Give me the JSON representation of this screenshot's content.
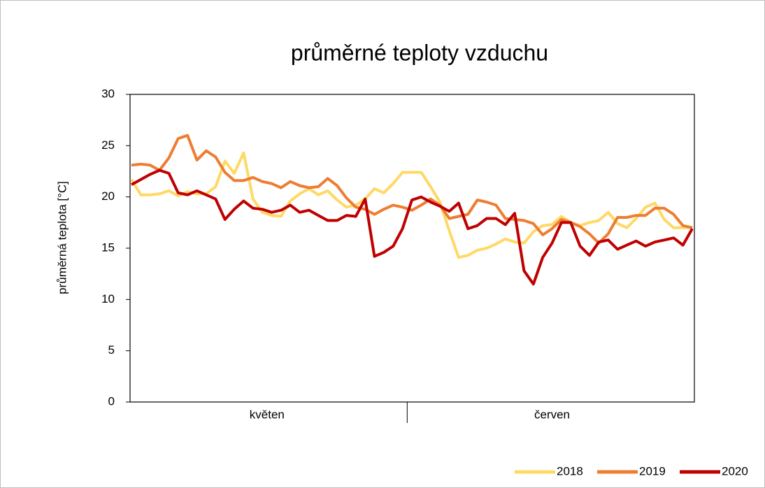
{
  "chart_data": {
    "type": "line",
    "title": "průměrné teploty vzduchu",
    "y_label": "průměrná teplota [°C]",
    "categories": [
      "květen",
      "květen",
      "květen",
      "květen",
      "květen",
      "květen",
      "květen",
      "květen",
      "květen",
      "květen",
      "květen",
      "květen",
      "květen",
      "květen",
      "květen",
      "květen",
      "květen",
      "květen",
      "květen",
      "květen",
      "květen",
      "květen",
      "květen",
      "květen",
      "květen",
      "květen",
      "květen",
      "květen",
      "květen",
      "květen",
      "červen",
      "červen",
      "červen",
      "červen",
      "červen",
      "červen",
      "červen",
      "červen",
      "červen",
      "červen",
      "červen",
      "červen",
      "červen",
      "červen",
      "červen",
      "červen",
      "červen",
      "červen",
      "červen",
      "červen",
      "červen",
      "červen",
      "červen",
      "červen",
      "červen",
      "červen",
      "červen",
      "červen",
      "červen",
      "červen",
      "červen"
    ],
    "series": [
      {
        "name": "2018",
        "color": "#FFD966",
        "values": [
          21.7,
          20.2,
          20.2,
          20.3,
          20.6,
          20.1,
          20.5,
          20.3,
          20.3,
          21.0,
          23.5,
          22.3,
          24.3,
          19.8,
          18.5,
          18.2,
          18.1,
          19.6,
          20.3,
          20.8,
          20.2,
          20.6,
          19.7,
          19.0,
          19.2,
          19.8,
          20.8,
          20.4,
          21.3,
          22.4,
          22.4,
          22.4,
          21.0,
          19.5,
          16.7,
          14.1,
          14.3,
          14.8,
          15.0,
          15.4,
          15.9,
          15.6,
          15.5,
          16.6,
          17.2,
          17.3,
          18.1,
          17.5,
          17.2,
          17.5,
          17.7,
          18.5,
          17.4,
          17.0,
          17.9,
          19.0,
          19.4,
          17.8,
          17.0,
          17.0,
          17.0
        ]
      },
      {
        "name": "2019",
        "color": "#ED7D31",
        "values": [
          23.1,
          23.2,
          23.1,
          22.6,
          23.8,
          25.7,
          26.0,
          23.6,
          24.5,
          23.9,
          22.4,
          21.6,
          21.6,
          21.9,
          21.5,
          21.3,
          20.9,
          21.5,
          21.1,
          20.9,
          21.0,
          21.8,
          21.1,
          19.9,
          19.0,
          18.8,
          18.3,
          18.8,
          19.2,
          19.0,
          18.7,
          19.2,
          19.8,
          19.2,
          17.9,
          18.1,
          18.3,
          19.7,
          19.5,
          19.2,
          17.9,
          17.8,
          17.7,
          17.4,
          16.3,
          16.9,
          17.8,
          17.5,
          17.1,
          16.4,
          15.5,
          16.4,
          18.0,
          18.0,
          18.2,
          18.2,
          18.9,
          18.9,
          18.3,
          17.2,
          17.0
        ]
      },
      {
        "name": "2020",
        "color": "#C00000",
        "values": [
          21.2,
          21.7,
          22.2,
          22.6,
          22.3,
          20.4,
          20.2,
          20.6,
          20.2,
          19.8,
          17.8,
          18.8,
          19.6,
          18.9,
          18.8,
          18.5,
          18.7,
          19.2,
          18.5,
          18.7,
          18.2,
          17.7,
          17.7,
          18.2,
          18.1,
          19.8,
          14.2,
          14.6,
          15.2,
          16.9,
          19.7,
          20.0,
          19.5,
          19.1,
          18.6,
          19.4,
          16.9,
          17.2,
          17.9,
          17.9,
          17.3,
          18.4,
          12.8,
          11.5,
          14.1,
          15.5,
          17.5,
          17.5,
          15.2,
          14.3,
          15.6,
          15.8,
          14.9,
          15.3,
          15.7,
          15.2,
          15.6,
          15.8,
          16.0,
          15.3,
          16.9
        ]
      }
    ],
    "ylim": [
      0,
      30
    ],
    "yticks": [
      0,
      5,
      10,
      15,
      20,
      25,
      30
    ],
    "grid": false,
    "legend": "bottom-right"
  }
}
